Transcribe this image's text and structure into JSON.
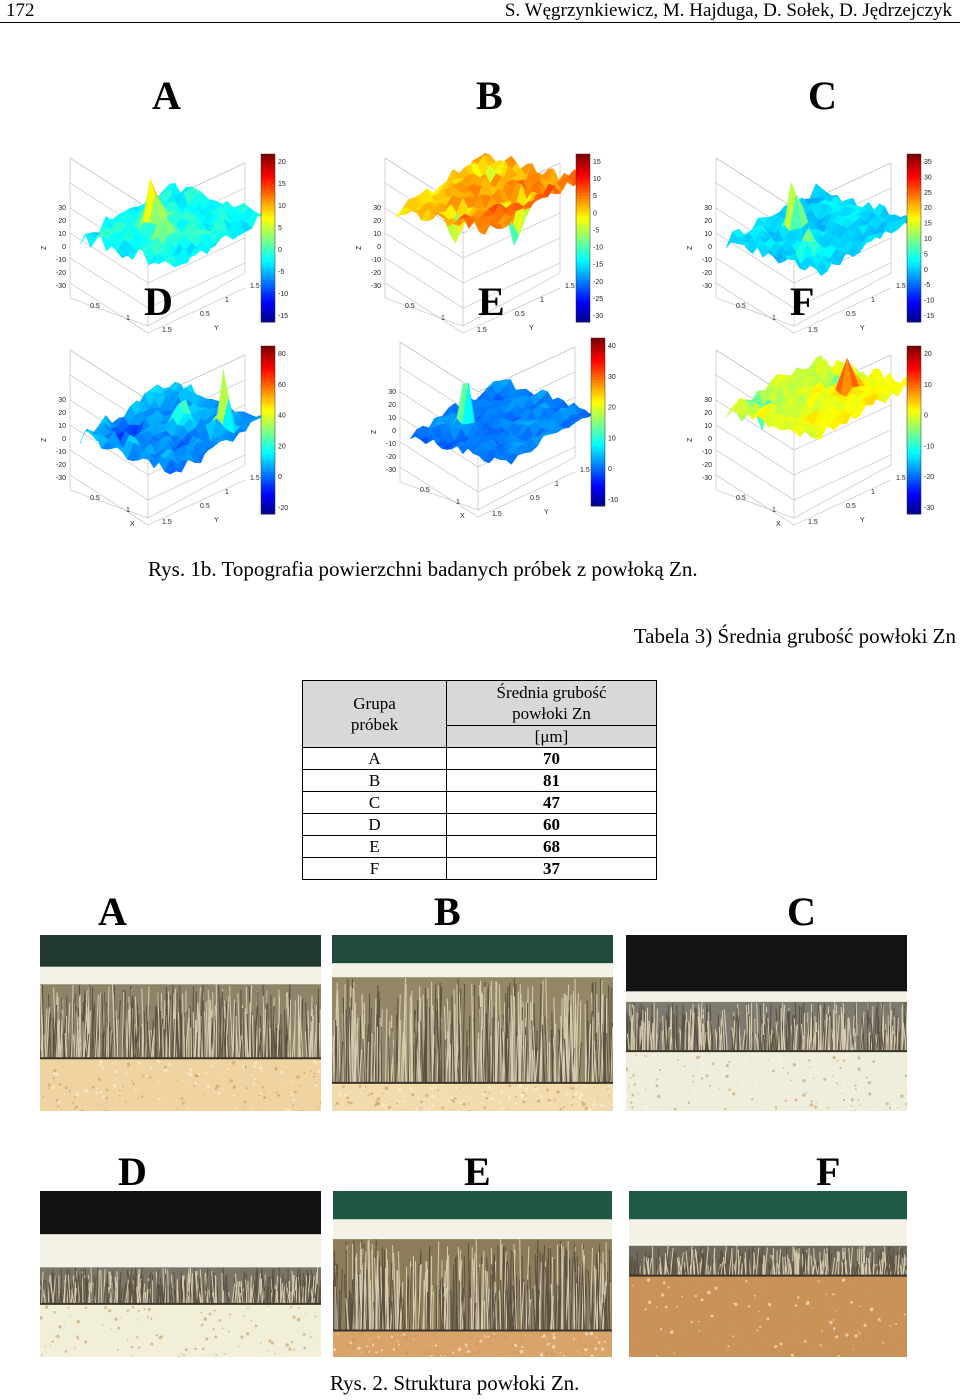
{
  "header": {
    "page_number": "172",
    "authors": "S. Węgrzynkiewicz, M. Hajduga, D. Sołek, D. Jędrzejczyk"
  },
  "figure1": {
    "labels": [
      "A",
      "B",
      "C",
      "D",
      "E",
      "F"
    ],
    "axis_z": "Z",
    "axis_x": "X",
    "axis_y": "Y",
    "z_ticks": [
      "30",
      "20",
      "10",
      "0",
      "-10",
      "-20",
      "-30"
    ],
    "x_ticks": [
      "0.5",
      "1",
      "1.5"
    ],
    "y_ticks": [
      "0.5",
      "1",
      "1.5"
    ],
    "colorbars": [
      [
        "20",
        "15",
        "10",
        "5",
        "0",
        "-5",
        "-10",
        "-15"
      ],
      [
        "15",
        "10",
        "5",
        "0",
        "-5",
        "-10",
        "-15",
        "-20",
        "-25",
        "-30"
      ],
      [
        "35",
        "30",
        "25",
        "20",
        "15",
        "10",
        "5",
        "0",
        "-5",
        "-10",
        "-15"
      ],
      [
        "80",
        "60",
        "40",
        "20",
        "0",
        "-20"
      ],
      [
        "40",
        "30",
        "20",
        "10",
        "0",
        "-10"
      ],
      [
        "20",
        "10",
        "0",
        "-10",
        "-20",
        "-30"
      ]
    ],
    "caption": "Rys. 1b. Topografia powierzchni badanych próbek z powłoką Zn."
  },
  "table": {
    "title": "Tabela 3) Średnia grubość powłoki Zn",
    "col1_header_line1": "Grupa",
    "col1_header_line2": "próbek",
    "col2_header_line1": "Średnia grubość",
    "col2_header_line2": "powłoki Zn",
    "col2_unit": "[μm]",
    "rows": [
      {
        "group": "A",
        "value": "70"
      },
      {
        "group": "B",
        "value": "81"
      },
      {
        "group": "C",
        "value": "47"
      },
      {
        "group": "D",
        "value": "60"
      },
      {
        "group": "E",
        "value": "68"
      },
      {
        "group": "F",
        "value": "37"
      }
    ]
  },
  "figure2": {
    "labels": [
      "A",
      "B",
      "C",
      "D",
      "E",
      "F"
    ],
    "caption": "Rys. 2. Struktura powłoki Zn."
  },
  "colors": {
    "jet_high": "#800000",
    "jet_mid_high": "#ff8000",
    "jet_mid": "#40e0c0",
    "jet_low": "#000090",
    "resin_green": "#1f4a3c",
    "coating_gray": "#9a9080",
    "substrate_cream": "#f0d8a8"
  }
}
